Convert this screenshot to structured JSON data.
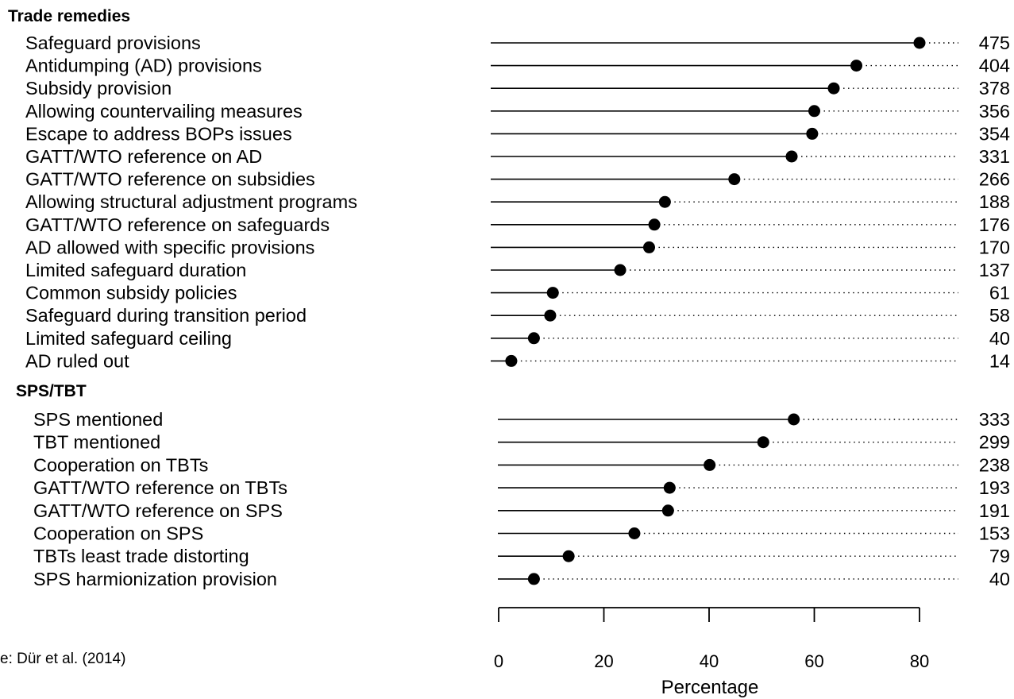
{
  "chart_data": {
    "type": "dot",
    "xlabel": "Percentage",
    "xlim": [
      0,
      80
    ],
    "xticks": [
      0,
      20,
      40,
      60,
      80
    ],
    "source": "e: Dür et al. (2014)",
    "groups": [
      {
        "name": "Trade remedies",
        "items": [
          {
            "label": "Safeguard provisions",
            "value": 80,
            "count": "475"
          },
          {
            "label": "Antidumping (AD) provisions",
            "value": 68,
            "count": "404"
          },
          {
            "label": "Subsidy provision",
            "value": 63.7,
            "count": "378"
          },
          {
            "label": "Allowing countervailing measures",
            "value": 60,
            "count": "356"
          },
          {
            "label": "Escape to address BOPs issues",
            "value": 59.6,
            "count": "354"
          },
          {
            "label": "GATT/WTO reference on AD",
            "value": 55.7,
            "count": "331"
          },
          {
            "label": "GATT/WTO reference on subsidies",
            "value": 44.8,
            "count": "266"
          },
          {
            "label": "Allowing structural adjustment programs",
            "value": 31.6,
            "count": "188"
          },
          {
            "label": "GATT/WTO reference on safeguards",
            "value": 29.6,
            "count": "176"
          },
          {
            "label": "AD allowed with specific provisions",
            "value": 28.6,
            "count": "170"
          },
          {
            "label": "Limited safeguard duration",
            "value": 23.1,
            "count": "137"
          },
          {
            "label": "Common subsidy policies",
            "value": 10.3,
            "count": "61"
          },
          {
            "label": "Safeguard during transition period",
            "value": 9.8,
            "count": "58"
          },
          {
            "label": "Limited safeguard ceiling",
            "value": 6.7,
            "count": "40"
          },
          {
            "label": "AD ruled out",
            "value": 2.4,
            "count": "14"
          }
        ]
      },
      {
        "name": "SPS/TBT",
        "items": [
          {
            "label": "SPS mentioned",
            "value": 56.1,
            "count": "333"
          },
          {
            "label": "TBT mentioned",
            "value": 50.3,
            "count": "299"
          },
          {
            "label": "Cooperation on TBTs",
            "value": 40.1,
            "count": "238"
          },
          {
            "label": "GATT/WTO reference on TBTs",
            "value": 32.5,
            "count": "193"
          },
          {
            "label": "GATT/WTO reference on SPS",
            "value": 32.2,
            "count": "191"
          },
          {
            "label": "Cooperation on SPS",
            "value": 25.8,
            "count": "153"
          },
          {
            "label": "TBTs least trade distorting",
            "value": 13.3,
            "count": "79"
          },
          {
            "label": "SPS harmionization provision",
            "value": 6.7,
            "count": "40"
          }
        ]
      }
    ]
  }
}
